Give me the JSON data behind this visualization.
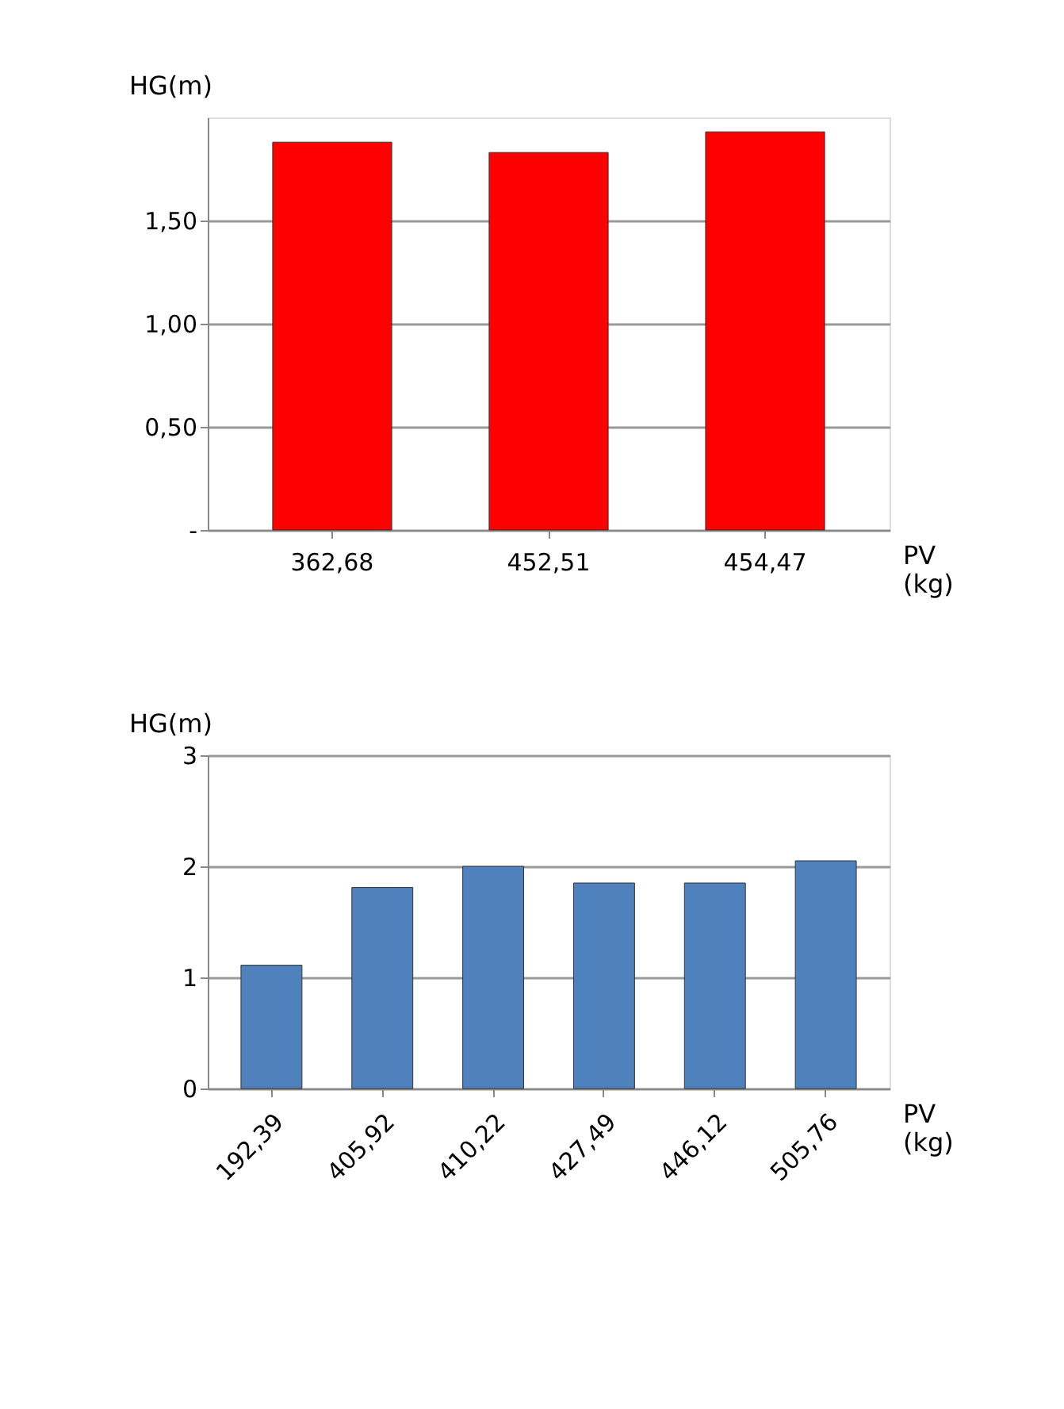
{
  "chart_data": [
    {
      "type": "bar",
      "ylabel": "HG(m)",
      "xlabel": "PV (kg)",
      "categories": [
        "362,68",
        "452,51",
        "454,47"
      ],
      "values": [
        1.88,
        1.83,
        1.93
      ],
      "color": "#ff0000",
      "ylim": [
        0,
        2
      ],
      "yticks": [
        {
          "value": 0,
          "label": "-"
        },
        {
          "value": 0.5,
          "label": "0,50"
        },
        {
          "value": 1,
          "label": "1,00"
        },
        {
          "value": 1.5,
          "label": "1,50"
        }
      ],
      "grid": "y"
    },
    {
      "type": "bar",
      "ylabel": "HG(m)",
      "xlabel": "PV (kg)",
      "categories": [
        "192,39",
        "405,92",
        "410,22",
        "427,49",
        "446,12",
        "505,76"
      ],
      "values": [
        1.11,
        1.81,
        2.0,
        1.85,
        1.85,
        2.05
      ],
      "color": "#4f81bd",
      "ylim": [
        0,
        3
      ],
      "yticks": [
        0,
        1,
        2,
        3
      ],
      "grid": "y"
    }
  ]
}
